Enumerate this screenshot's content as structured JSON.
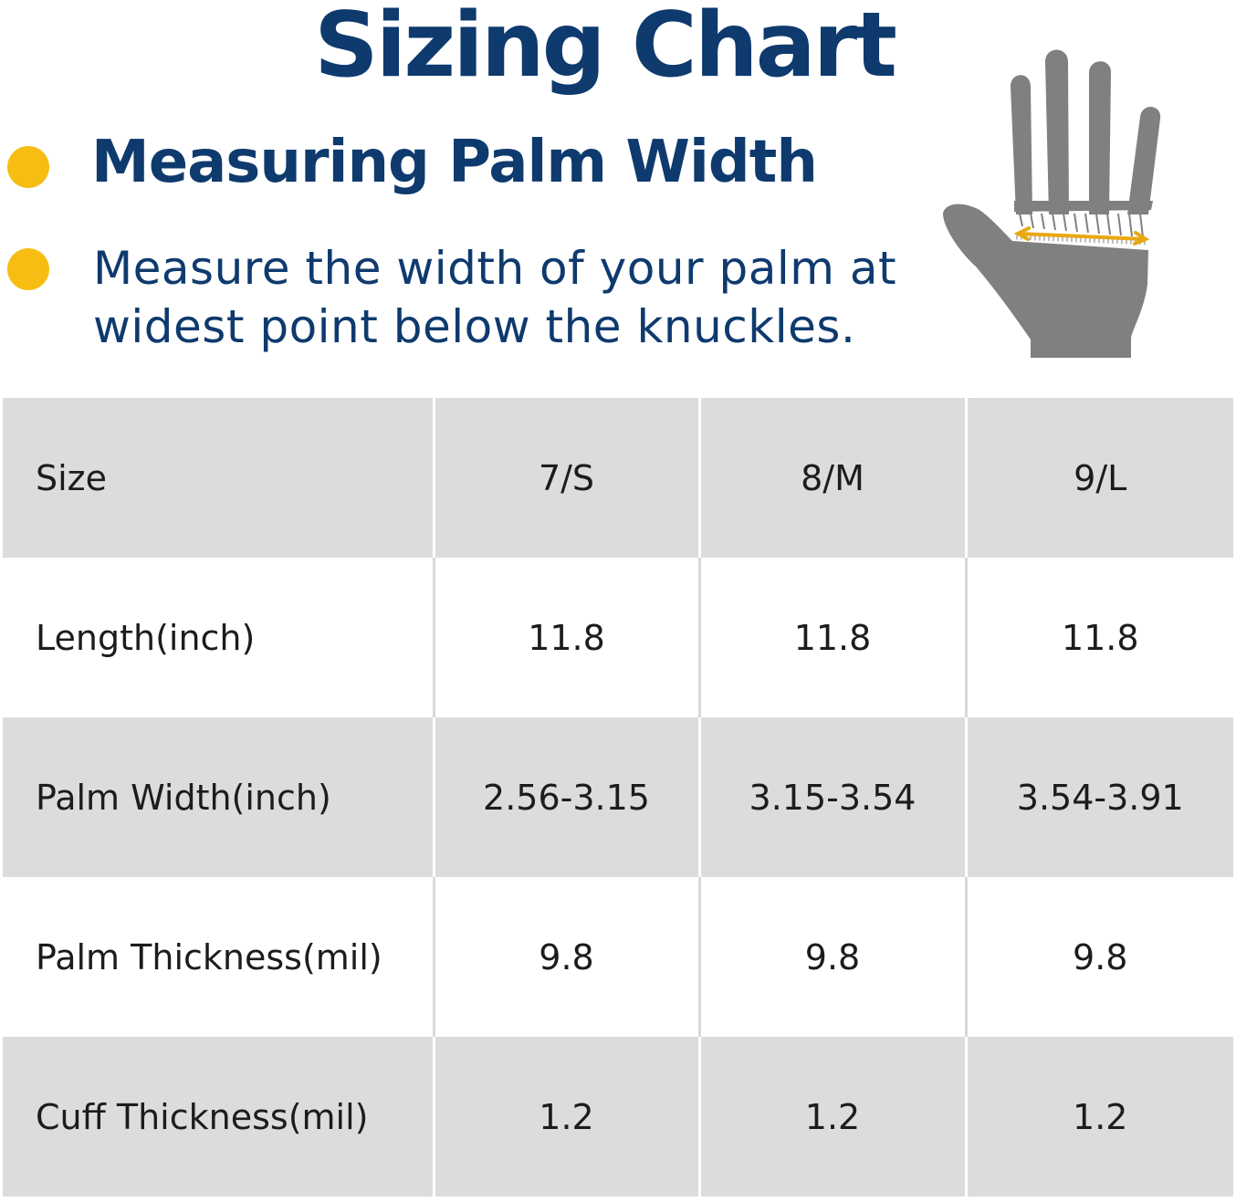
{
  "title": "Sizing Chart",
  "heading": "Measuring Palm Width",
  "instruction": "Measure the width of your palm at widest point below the knuckles.",
  "colors": {
    "title": "#0e3a6e",
    "bullet": "#f7bd13",
    "hand": "#808080",
    "measure_arrow": "#e8a812",
    "shaded_row": "#dcdcde"
  },
  "illustration": {
    "icon": "hand-palm-width-icon"
  },
  "table": {
    "header": {
      "label": "Size",
      "cells": [
        "7/S",
        "8/M",
        "9/L"
      ]
    },
    "rows": [
      {
        "label": "Length(inch)",
        "cells": [
          "11.8",
          "11.8",
          "11.8"
        ]
      },
      {
        "label": "Palm Width(inch)",
        "cells": [
          "2.56-3.15",
          "3.15-3.54",
          "3.54-3.91"
        ]
      },
      {
        "label": "Palm Thickness(mil)",
        "cells": [
          "9.8",
          "9.8",
          "9.8"
        ]
      },
      {
        "label": "Cuff Thickness(mil)",
        "cells": [
          "1.2",
          "1.2",
          "1.2"
        ]
      }
    ]
  }
}
